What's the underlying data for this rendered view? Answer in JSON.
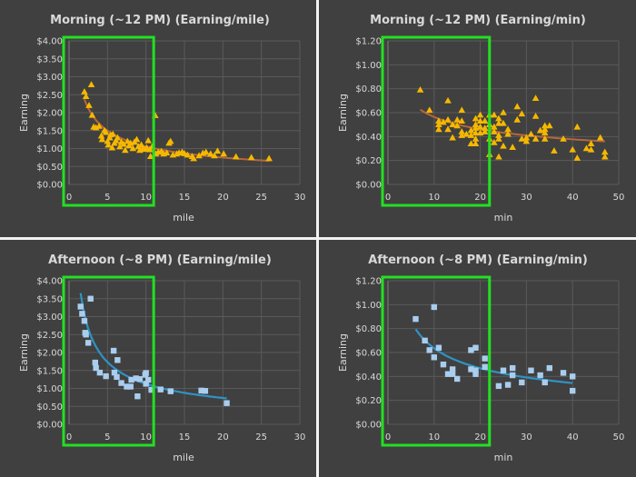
{
  "colors": {
    "background": "#404040",
    "grid": "#5a5a5a",
    "text": "#d9d9d9",
    "highlight_box": "#22e022",
    "morning_marker": "#f5b800",
    "morning_trend": "#b5683a",
    "afternoon_marker": "#a9cdee",
    "afternoon_trend": "#2f93c4"
  },
  "chart_data": [
    {
      "id": "morning-mile",
      "type": "scatter",
      "title": "Morning (~12 PM) (Earning/mile)",
      "xlabel": "mile",
      "ylabel": "Earning",
      "xlim": [
        0,
        30
      ],
      "ylim": [
        0,
        4
      ],
      "xticks": [
        "0",
        "5",
        "10",
        "15",
        "20",
        "25",
        "30"
      ],
      "yticks": [
        "$0.00",
        "$0.50",
        "$1.00",
        "$1.50",
        "$2.00",
        "$2.50",
        "$3.00",
        "$3.50",
        "$4.00"
      ],
      "marker": "triangle",
      "highlight_x_range": [
        0,
        11
      ],
      "trend": {
        "type": "power",
        "a": 3.35,
        "b": -0.5,
        "x_range": [
          2,
          26
        ]
      },
      "points": [
        [
          2.0,
          2.58
        ],
        [
          2.2,
          2.45
        ],
        [
          2.6,
          2.2
        ],
        [
          2.9,
          2.78
        ],
        [
          3.0,
          1.93
        ],
        [
          3.2,
          1.6
        ],
        [
          3.5,
          1.58
        ],
        [
          3.9,
          1.62
        ],
        [
          4.2,
          1.35
        ],
        [
          4.3,
          1.25
        ],
        [
          4.6,
          1.5
        ],
        [
          4.8,
          1.45
        ],
        [
          5.0,
          1.2
        ],
        [
          5.1,
          1.1
        ],
        [
          5.3,
          1.3
        ],
        [
          5.4,
          1.38
        ],
        [
          5.6,
          1.02
        ],
        [
          5.7,
          1.4
        ],
        [
          5.9,
          1.15
        ],
        [
          6.1,
          1.22
        ],
        [
          6.3,
          1.3
        ],
        [
          6.6,
          1.05
        ],
        [
          6.8,
          1.18
        ],
        [
          7.1,
          1.12
        ],
        [
          7.3,
          0.95
        ],
        [
          7.6,
          1.2
        ],
        [
          7.8,
          1.08
        ],
        [
          8.0,
          1.15
        ],
        [
          8.3,
          1.0
        ],
        [
          8.5,
          1.18
        ],
        [
          8.8,
          1.25
        ],
        [
          9.0,
          1.05
        ],
        [
          9.2,
          0.95
        ],
        [
          9.4,
          1.1
        ],
        [
          9.6,
          1.0
        ],
        [
          9.8,
          0.98
        ],
        [
          10.1,
          1.02
        ],
        [
          10.3,
          1.22
        ],
        [
          10.5,
          0.97
        ],
        [
          10.6,
          0.78
        ],
        [
          10.8,
          1.05
        ],
        [
          11.2,
          1.92
        ],
        [
          11.3,
          0.85
        ],
        [
          11.6,
          0.9
        ],
        [
          12.0,
          0.92
        ],
        [
          12.3,
          0.85
        ],
        [
          12.7,
          0.88
        ],
        [
          13.0,
          1.15
        ],
        [
          13.2,
          1.2
        ],
        [
          13.5,
          0.82
        ],
        [
          14.0,
          0.85
        ],
        [
          14.3,
          0.88
        ],
        [
          14.7,
          0.9
        ],
        [
          15.0,
          0.86
        ],
        [
          15.4,
          0.82
        ],
        [
          16.0,
          0.78
        ],
        [
          16.2,
          0.72
        ],
        [
          16.9,
          0.8
        ],
        [
          17.4,
          0.87
        ],
        [
          17.8,
          0.9
        ],
        [
          18.4,
          0.85
        ],
        [
          18.9,
          0.8
        ],
        [
          19.3,
          0.93
        ],
        [
          20.1,
          0.85
        ],
        [
          21.7,
          0.77
        ],
        [
          23.7,
          0.75
        ],
        [
          26.0,
          0.72
        ]
      ]
    },
    {
      "id": "morning-min",
      "type": "scatter",
      "title": "Morning (~12 PM) (Earning/min)",
      "xlabel": "min",
      "ylabel": "Earning",
      "xlim": [
        0,
        50
      ],
      "ylim": [
        0,
        1.2
      ],
      "xticks": [
        "0",
        "10",
        "20",
        "30",
        "40",
        "50"
      ],
      "yticks": [
        "$0.00",
        "$0.20",
        "$0.40",
        "$0.60",
        "$0.80",
        "$1.00",
        "$1.20"
      ],
      "marker": "triangle",
      "highlight_x_range": [
        0,
        22
      ],
      "trend": {
        "type": "power",
        "a": 1.1,
        "b": -0.29,
        "x_range": [
          7,
          47
        ]
      },
      "points": [
        [
          7,
          0.79
        ],
        [
          9,
          0.62
        ],
        [
          11,
          0.53
        ],
        [
          11,
          0.5
        ],
        [
          11,
          0.46
        ],
        [
          12,
          0.52
        ],
        [
          13,
          0.7
        ],
        [
          13,
          0.54
        ],
        [
          13,
          0.46
        ],
        [
          14,
          0.5
        ],
        [
          14,
          0.39
        ],
        [
          15,
          0.54
        ],
        [
          15,
          0.49
        ],
        [
          16,
          0.62
        ],
        [
          16,
          0.53
        ],
        [
          16,
          0.44
        ],
        [
          16,
          0.41
        ],
        [
          17,
          0.42
        ],
        [
          18,
          0.45
        ],
        [
          18,
          0.41
        ],
        [
          18,
          0.34
        ],
        [
          19,
          0.55
        ],
        [
          19,
          0.5
        ],
        [
          19,
          0.47
        ],
        [
          19,
          0.43
        ],
        [
          19,
          0.38
        ],
        [
          19,
          0.34
        ],
        [
          20,
          0.58
        ],
        [
          20,
          0.53
        ],
        [
          20,
          0.48
        ],
        [
          20,
          0.43
        ],
        [
          21,
          0.53
        ],
        [
          21,
          0.47
        ],
        [
          21,
          0.44
        ],
        [
          22,
          0.58
        ],
        [
          22,
          0.5
        ],
        [
          22,
          0.38
        ],
        [
          22,
          0.25
        ],
        [
          23,
          0.58
        ],
        [
          23,
          0.48
        ],
        [
          23,
          0.44
        ],
        [
          23,
          0.35
        ],
        [
          24,
          0.55
        ],
        [
          24,
          0.51
        ],
        [
          24,
          0.41
        ],
        [
          24,
          0.38
        ],
        [
          24,
          0.23
        ],
        [
          25,
          0.6
        ],
        [
          25,
          0.51
        ],
        [
          25,
          0.32
        ],
        [
          26,
          0.46
        ],
        [
          26,
          0.42
        ],
        [
          27,
          0.31
        ],
        [
          28,
          0.65
        ],
        [
          28,
          0.54
        ],
        [
          29,
          0.59
        ],
        [
          29,
          0.38
        ],
        [
          30,
          0.39
        ],
        [
          30,
          0.36
        ],
        [
          31,
          0.42
        ],
        [
          32,
          0.72
        ],
        [
          32,
          0.57
        ],
        [
          32,
          0.38
        ],
        [
          33,
          0.45
        ],
        [
          34,
          0.49
        ],
        [
          34,
          0.46
        ],
        [
          34,
          0.43
        ],
        [
          34,
          0.38
        ],
        [
          35,
          0.49
        ],
        [
          36,
          0.28
        ],
        [
          38,
          0.38
        ],
        [
          40,
          0.29
        ],
        [
          41,
          0.48
        ],
        [
          41,
          0.22
        ],
        [
          43,
          0.3
        ],
        [
          44,
          0.34
        ],
        [
          44,
          0.29
        ],
        [
          46,
          0.39
        ],
        [
          47,
          0.27
        ],
        [
          47,
          0.23
        ]
      ]
    },
    {
      "id": "afternoon-mile",
      "type": "scatter",
      "title": "Afternoon (~8 PM) (Earning/mile)",
      "xlabel": "mile",
      "ylabel": "Earning",
      "xlim": [
        0,
        30
      ],
      "ylim": [
        0,
        4
      ],
      "xticks": [
        "0",
        "5",
        "10",
        "15",
        "20",
        "25",
        "30"
      ],
      "yticks": [
        "$0.00",
        "$0.50",
        "$1.00",
        "$1.50",
        "$2.00",
        "$2.50",
        "$3.00",
        "$3.50",
        "$4.00"
      ],
      "marker": "square",
      "highlight_x_range": [
        0,
        11
      ],
      "trend": {
        "type": "power",
        "a": 4.7,
        "b": -0.62,
        "x_range": [
          1.5,
          20.5
        ]
      },
      "points": [
        [
          1.5,
          3.28
        ],
        [
          1.7,
          3.08
        ],
        [
          2.0,
          2.88
        ],
        [
          2.1,
          2.55
        ],
        [
          2.2,
          2.5
        ],
        [
          2.5,
          2.27
        ],
        [
          2.8,
          3.5
        ],
        [
          3.4,
          1.72
        ],
        [
          3.5,
          1.57
        ],
        [
          4.0,
          1.44
        ],
        [
          4.8,
          1.34
        ],
        [
          5.8,
          2.05
        ],
        [
          5.9,
          1.44
        ],
        [
          6.2,
          1.32
        ],
        [
          6.3,
          1.79
        ],
        [
          6.8,
          1.15
        ],
        [
          7.5,
          1.05
        ],
        [
          8.0,
          1.05
        ],
        [
          8.1,
          1.24
        ],
        [
          8.7,
          1.28
        ],
        [
          8.9,
          0.78
        ],
        [
          9.2,
          1.26
        ],
        [
          9.9,
          1.38
        ],
        [
          10.0,
          1.13
        ],
        [
          10.0,
          1.43
        ],
        [
          10.3,
          1.24
        ],
        [
          10.7,
          0.96
        ],
        [
          11.9,
          0.97
        ],
        [
          13.2,
          0.92
        ],
        [
          17.2,
          0.94
        ],
        [
          17.7,
          0.93
        ],
        [
          20.5,
          0.59
        ]
      ]
    },
    {
      "id": "afternoon-min",
      "type": "scatter",
      "title": "Afternoon (~8 PM) (Earning/min)",
      "xlabel": "min",
      "ylabel": "Earning",
      "xlim": [
        0,
        50
      ],
      "ylim": [
        0,
        1.2
      ],
      "xticks": [
        "0",
        "10",
        "20",
        "30",
        "40",
        "50"
      ],
      "yticks": [
        "$0.00",
        "$0.20",
        "$0.40",
        "$0.60",
        "$0.80",
        "$1.00",
        "$1.20"
      ],
      "marker": "square",
      "highlight_x_range": [
        0,
        22
      ],
      "trend": {
        "type": "power",
        "a": 1.75,
        "b": -0.44,
        "x_range": [
          6,
          40
        ]
      },
      "points": [
        [
          6,
          0.88
        ],
        [
          8,
          0.7
        ],
        [
          9,
          0.62
        ],
        [
          10,
          0.98
        ],
        [
          10,
          0.56
        ],
        [
          11,
          0.64
        ],
        [
          12,
          0.5
        ],
        [
          13,
          0.42
        ],
        [
          14,
          0.46
        ],
        [
          14,
          0.42
        ],
        [
          15,
          0.38
        ],
        [
          18,
          0.62
        ],
        [
          18,
          0.46
        ],
        [
          19,
          0.64
        ],
        [
          19,
          0.45
        ],
        [
          19,
          0.42
        ],
        [
          21,
          0.55
        ],
        [
          21,
          0.48
        ],
        [
          24,
          0.32
        ],
        [
          25,
          0.45
        ],
        [
          26,
          0.33
        ],
        [
          27,
          0.47
        ],
        [
          27,
          0.41
        ],
        [
          29,
          0.35
        ],
        [
          31,
          0.45
        ],
        [
          33,
          0.41
        ],
        [
          34,
          0.35
        ],
        [
          35,
          0.47
        ],
        [
          38,
          0.43
        ],
        [
          40,
          0.4
        ],
        [
          40,
          0.28
        ]
      ]
    }
  ]
}
